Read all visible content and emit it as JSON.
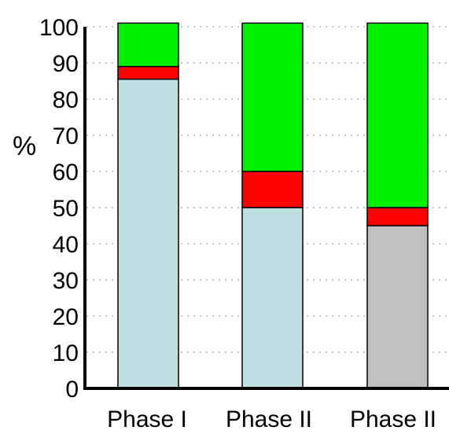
{
  "chart_data": {
    "type": "bar",
    "stacked": true,
    "ylabel": "%",
    "xlabel": "",
    "title": "",
    "ylim": [
      0,
      100
    ],
    "yticks": [
      0,
      10,
      20,
      30,
      40,
      50,
      60,
      70,
      80,
      90,
      100
    ],
    "grid": "dotted horizontal",
    "legend": "none",
    "categories": [
      "Phase I",
      "Phase II",
      "Phase II"
    ],
    "series": [
      {
        "color": "#bfe0e2",
        "values": [
          85.5,
          50,
          0
        ]
      },
      {
        "color": "#c0c0c0",
        "values": [
          0,
          0,
          45
        ]
      },
      {
        "color": "#ff0000",
        "values": [
          3.5,
          10,
          5
        ]
      },
      {
        "color": "#00ee00",
        "values": [
          12,
          41,
          51
        ]
      }
    ]
  }
}
